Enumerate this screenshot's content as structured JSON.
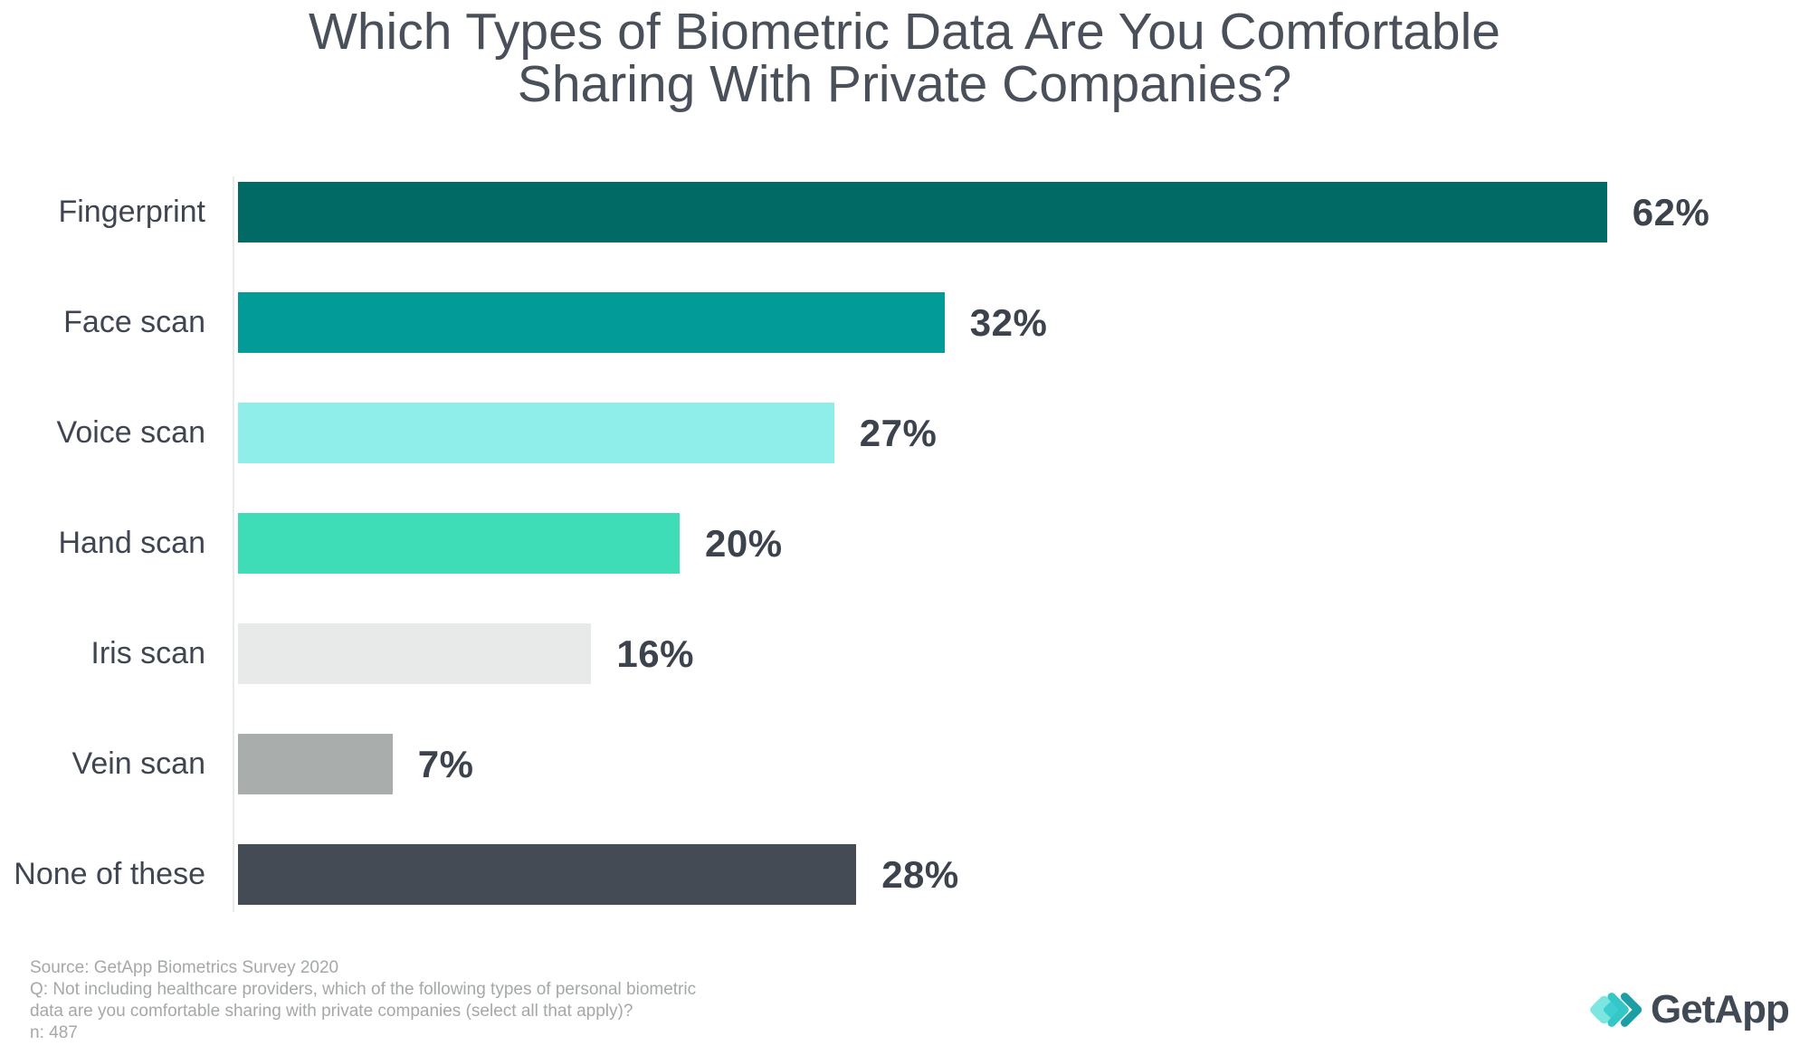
{
  "title": {
    "line1": "Which Types of Biometric Data Are You Comfortable",
    "line2": "Sharing With Private Companies?",
    "full": "Which Types of Biometric Data Are You Comfortable Sharing With Private Companies?"
  },
  "chart_data": {
    "type": "bar",
    "orientation": "horizontal",
    "title": "Which Types of Biometric Data Are You Comfortable Sharing With Private Companies?",
    "categories": [
      "Fingerprint",
      "Face scan",
      "Voice scan",
      "Hand scan",
      "Iris scan",
      "Vein scan",
      "None of these"
    ],
    "values": [
      62,
      32,
      27,
      20,
      16,
      7,
      28
    ],
    "value_labels": [
      "62%",
      "32%",
      "27%",
      "20%",
      "16%",
      "7%",
      "28%"
    ],
    "value_suffix": "%",
    "bar_colors": [
      "#016A65",
      "#029B97",
      "#8FEEE9",
      "#3FDCB8",
      "#E8EAEA",
      "#A9ADAC",
      "#454B54"
    ],
    "xlabel": "",
    "ylabel": "",
    "xlim": [
      0,
      65
    ],
    "grid": false,
    "legend": false,
    "data_labels_position": "right-of-bar"
  },
  "footnotes": {
    "lines": [
      "Source: GetApp Biometrics Survey 2020",
      "Q: Not including healthcare providers, which of the following types of personal biometric",
      "data are you comfortable sharing with private companies (select all that apply)?",
      "n: 487"
    ]
  },
  "logo": {
    "text": "GetApp"
  },
  "colors": {
    "background": "#FFFFFF",
    "title": "#49505A",
    "category_label": "#3F4651",
    "value_label": "#3C434D",
    "footnote": "#A5A8A8",
    "axis_line": "#E7EBEB",
    "logo_text": "#414A54",
    "logo_teal_light": "#7DE6E1",
    "logo_teal_mid": "#3ECDD0",
    "logo_teal_dark": "#1B9FA4"
  }
}
